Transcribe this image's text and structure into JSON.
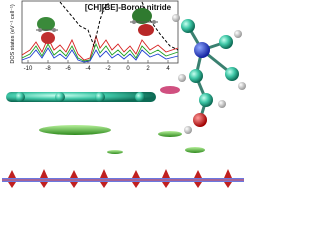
{
  "inset": {
    "title": "[CH][BE]-Boron nitride",
    "y_label": "DOS states (eV⁻¹ cell⁻¹)",
    "xticks": [
      -10,
      -8,
      -6,
      -4,
      -2,
      0,
      2,
      4
    ]
  }
}
